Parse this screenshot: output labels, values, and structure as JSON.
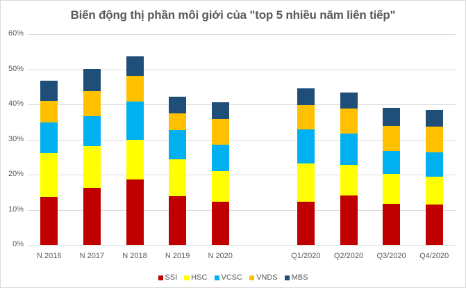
{
  "chart_data": {
    "type": "bar",
    "stacked": true,
    "title": "Biến động thị phần môi giới của \"top 5 nhiều năm liên tiếp\"",
    "xlabel": "",
    "ylabel": "",
    "ylim": [
      0,
      60
    ],
    "y_ticks": [
      "0%",
      "10%",
      "20%",
      "30%",
      "40%",
      "50%",
      "60%"
    ],
    "grid": true,
    "legend_position": "bottom",
    "categories": [
      "N 2016",
      "N 2017",
      "N 2018",
      "N 2019",
      "N 2020",
      "",
      "Q1/2020",
      "Q2/2020",
      "Q3/2020",
      "Q4/2020"
    ],
    "series": [
      {
        "name": "SSI",
        "color": "#C00000",
        "values": [
          13.7,
          16.2,
          18.6,
          13.9,
          12.3,
          null,
          12.3,
          14.1,
          11.7,
          11.5
        ]
      },
      {
        "name": "HSC",
        "color": "#FFFF00",
        "values": [
          12.4,
          11.9,
          11.3,
          10.5,
          8.7,
          null,
          10.9,
          8.7,
          8.5,
          7.9
        ]
      },
      {
        "name": "VCSC",
        "color": "#00B0F0",
        "values": [
          8.8,
          8.5,
          10.9,
          8.3,
          7.5,
          null,
          9.7,
          8.9,
          6.5,
          6.9
        ]
      },
      {
        "name": "VNDS",
        "color": "#FFC000",
        "values": [
          6.1,
          7.2,
          7.3,
          4.7,
          7.3,
          null,
          6.9,
          7.1,
          7.2,
          7.4
        ]
      },
      {
        "name": "MBS",
        "color": "#1F4E79",
        "values": [
          5.7,
          6.3,
          5.6,
          4.8,
          4.8,
          null,
          4.8,
          4.6,
          5.1,
          4.7
        ]
      }
    ],
    "unit": "%"
  },
  "legend": [
    {
      "label": "SSI",
      "color": "#C00000"
    },
    {
      "label": "HSC",
      "color": "#FFFF00"
    },
    {
      "label": "VCSC",
      "color": "#00B0F0"
    },
    {
      "label": "VNDS",
      "color": "#FFC000"
    },
    {
      "label": "MBS",
      "color": "#1F4E79"
    }
  ]
}
